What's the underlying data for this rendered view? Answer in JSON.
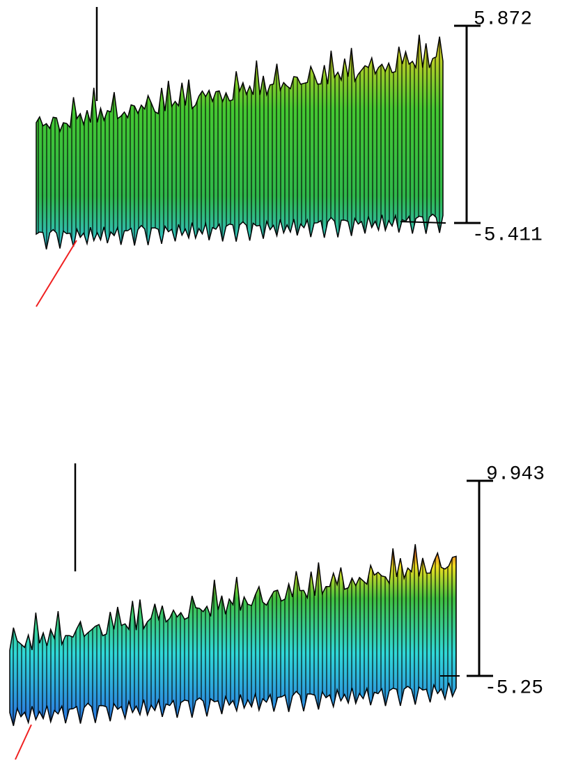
{
  "chart_data": [
    {
      "type": "surface",
      "zlim": [
        -5.411,
        5.872
      ],
      "zticks": [
        -5.411,
        5.872
      ]
    },
    {
      "type": "surface",
      "zlim": [
        -5.25,
        9.943
      ],
      "zticks": [
        -5.25,
        9.943
      ]
    }
  ]
}
